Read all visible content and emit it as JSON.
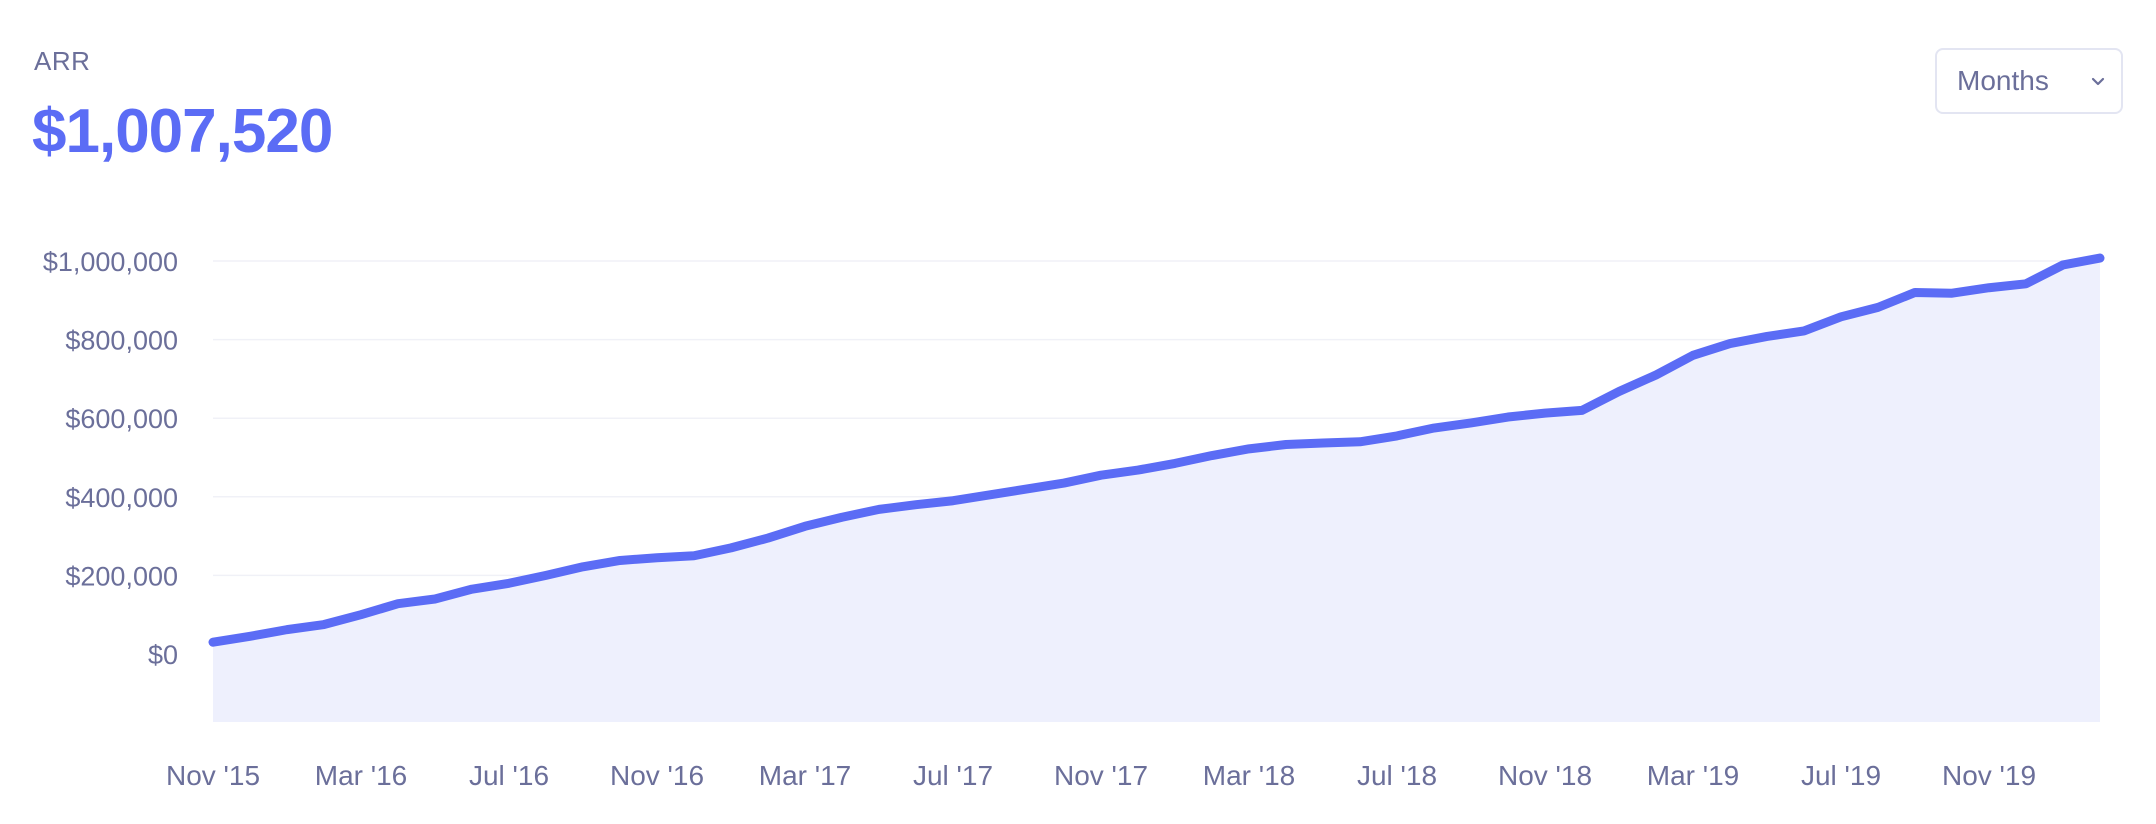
{
  "header": {
    "metric_label": "ARR",
    "metric_value": "$1,007,520"
  },
  "period_select": {
    "value": "Months",
    "icon": "chevron-down-icon"
  },
  "colors": {
    "line": "#5b6cf5",
    "area": "#eef0fd",
    "grid": "#f0f1f7",
    "text": "#6b6f9a"
  },
  "chart_data": {
    "type": "area",
    "title": "",
    "xlabel": "",
    "ylabel": "",
    "ylim": [
      -170000,
      1000000
    ],
    "xlim": [
      "2015-11",
      "2020-02"
    ],
    "grid": true,
    "y_ticks": [
      {
        "value": 0,
        "label": "$0"
      },
      {
        "value": 200000,
        "label": "$200,000"
      },
      {
        "value": 400000,
        "label": "$400,000"
      },
      {
        "value": 600000,
        "label": "$600,000"
      },
      {
        "value": 800000,
        "label": "$800,000"
      },
      {
        "value": 1000000,
        "label": "$1,000,000"
      }
    ],
    "x_ticks": [
      {
        "value": "2015-11",
        "label": "Nov '15"
      },
      {
        "value": "2016-03",
        "label": "Mar '16"
      },
      {
        "value": "2016-07",
        "label": "Jul '16"
      },
      {
        "value": "2016-11",
        "label": "Nov '16"
      },
      {
        "value": "2017-03",
        "label": "Mar '17"
      },
      {
        "value": "2017-07",
        "label": "Jul '17"
      },
      {
        "value": "2017-11",
        "label": "Nov '17"
      },
      {
        "value": "2018-03",
        "label": "Mar '18"
      },
      {
        "value": "2018-07",
        "label": "Jul '18"
      },
      {
        "value": "2018-11",
        "label": "Nov '18"
      },
      {
        "value": "2019-03",
        "label": "Mar '19"
      },
      {
        "value": "2019-07",
        "label": "Jul '19"
      },
      {
        "value": "2019-11",
        "label": "Nov '19"
      }
    ],
    "series": [
      {
        "x": [
          "2015-11",
          "2015-12",
          "2016-01",
          "2016-02",
          "2016-03",
          "2016-04",
          "2016-05",
          "2016-06",
          "2016-07",
          "2016-08",
          "2016-09",
          "2016-10",
          "2016-11",
          "2016-12",
          "2017-01",
          "2017-02",
          "2017-03",
          "2017-04",
          "2017-05",
          "2017-06",
          "2017-07",
          "2017-08",
          "2017-09",
          "2017-10",
          "2017-11",
          "2017-12",
          "2018-01",
          "2018-02",
          "2018-03",
          "2018-04",
          "2018-05",
          "2018-06",
          "2018-07",
          "2018-08",
          "2018-09",
          "2018-10",
          "2018-11",
          "2018-12",
          "2019-01",
          "2019-02",
          "2019-03",
          "2019-04",
          "2019-05",
          "2019-06",
          "2019-07",
          "2019-08",
          "2019-09",
          "2019-10",
          "2019-11",
          "2019-12",
          "2020-01",
          "2020-02"
        ],
        "y": [
          30000,
          45000,
          62000,
          75000,
          100000,
          128000,
          140000,
          165000,
          180000,
          200000,
          222000,
          238000,
          245000,
          250000,
          270000,
          295000,
          325000,
          348000,
          368000,
          380000,
          390000,
          405000,
          420000,
          435000,
          455000,
          468000,
          485000,
          505000,
          522000,
          533000,
          537000,
          540000,
          555000,
          575000,
          588000,
          603000,
          613000,
          620000,
          668000,
          710000,
          760000,
          790000,
          808000,
          822000,
          858000,
          882000,
          920000,
          918000,
          932000,
          942000,
          990000,
          1007520
        ]
      }
    ]
  }
}
